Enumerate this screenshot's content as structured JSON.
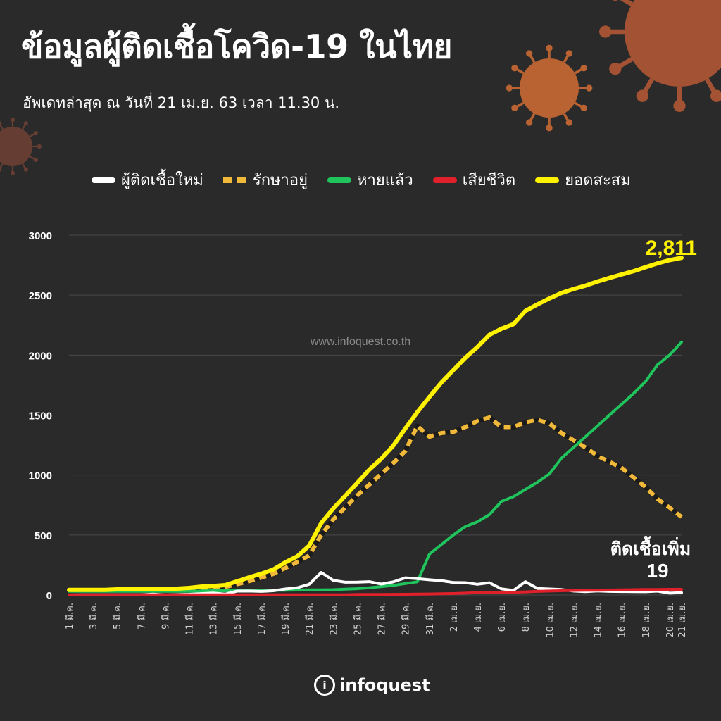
{
  "header": {
    "title": "ข้อมูลผู้ติดเชื้อโควิด-19 ในไทย",
    "subtitle": "อัพเดทล่าสุด ณ วันที่ 21 เม.ย. 63 เวลา 11.30 น."
  },
  "watermark": "www.infoquest.co.th",
  "logo": {
    "mark": "i",
    "text": "infoquest"
  },
  "colors": {
    "new_cases": "#ffffff",
    "active": "#f0b93a",
    "recovered": "#1fc45c",
    "deaths": "#e0202a",
    "cumulative": "#fff200",
    "background": "#2b2a2a"
  },
  "chart_data": {
    "type": "line",
    "title": "ข้อมูลผู้ติดเชื้อโควิด-19 ในไทย",
    "xlabel": "",
    "ylabel": "",
    "ylim": [
      0,
      3000
    ],
    "yticks": [
      0,
      500,
      1000,
      1500,
      2000,
      2500,
      3000
    ],
    "grid": true,
    "legend_position": "top",
    "x": [
      "1 มี.ค.",
      "2 มี.ค.",
      "3 มี.ค.",
      "4 มี.ค.",
      "5 มี.ค.",
      "6 มี.ค.",
      "7 มี.ค.",
      "8 มี.ค.",
      "9 มี.ค.",
      "10 มี.ค.",
      "11 มี.ค.",
      "12 มี.ค.",
      "13 มี.ค.",
      "14 มี.ค.",
      "15 มี.ค.",
      "16 มี.ค.",
      "17 มี.ค.",
      "18 มี.ค.",
      "19 มี.ค.",
      "20 มี.ค.",
      "21 มี.ค.",
      "22 มี.ค.",
      "23 มี.ค.",
      "24 มี.ค.",
      "25 มี.ค.",
      "26 มี.ค.",
      "27 มี.ค.",
      "28 มี.ค.",
      "29 มี.ค.",
      "30 มี.ค.",
      "31 มี.ค.",
      "1 เม.ย.",
      "2 เม.ย.",
      "3 เม.ย.",
      "4 เม.ย.",
      "5 เม.ย.",
      "6 เม.ย.",
      "7 เม.ย.",
      "8 เม.ย.",
      "9 เม.ย.",
      "10 เม.ย.",
      "11 เม.ย.",
      "12 เม.ย.",
      "13 เม.ย.",
      "14 เม.ย.",
      "15 เม.ย.",
      "16 เม.ย.",
      "17 เม.ย.",
      "18 เม.ย.",
      "19 เม.ย.",
      "20 เม.ย.",
      "21 เม.ย."
    ],
    "tick_labels": [
      "1 มี.ค.",
      "3 มี.ค.",
      "5 มี.ค.",
      "7 มี.ค.",
      "9 มี.ค.",
      "11 มี.ค.",
      "13 มี.ค.",
      "15 มี.ค.",
      "17 มี.ค.",
      "19 มี.ค.",
      "21 มี.ค.",
      "23 มี.ค.",
      "25 มี.ค.",
      "27 มี.ค.",
      "29 มี.ค.",
      "31 มี.ค.",
      "2 เม.ย.",
      "4 เม.ย.",
      "6 เม.ย.",
      "8 เม.ย.",
      "10 เม.ย.",
      "12 เม.ย.",
      "14 เม.ย.",
      "16 เม.ย.",
      "18 เม.ย.",
      "20 เม.ย.",
      "21 เม.ย."
    ],
    "series": [
      {
        "name": "ผู้ติดเชื้อใหม่",
        "color": "#ffffff",
        "style": "solid",
        "values": [
          0,
          1,
          1,
          1,
          1,
          1,
          2,
          7,
          0,
          3,
          6,
          11,
          16,
          7,
          32,
          33,
          30,
          35,
          50,
          60,
          89,
          188,
          122,
          106,
          107,
          111,
          91,
          109,
          143,
          136,
          127,
          120,
          104,
          103,
          89,
          102,
          51,
          38,
          111,
          54,
          50,
          45,
          33,
          28,
          34,
          30,
          29,
          28,
          27,
          32,
          15,
          19
        ]
      },
      {
        "name": "รักษาอยู่",
        "color": "#f0b93a",
        "style": "dashed",
        "values": [
          40,
          40,
          40,
          40,
          40,
          40,
          41,
          43,
          42,
          43,
          45,
          55,
          62,
          67,
          90,
          115,
          145,
          175,
          225,
          275,
          330,
          500,
          630,
          730,
          830,
          920,
          1010,
          1100,
          1200,
          1410,
          1320,
          1350,
          1360,
          1400,
          1450,
          1480,
          1400,
          1400,
          1440,
          1460,
          1430,
          1350,
          1290,
          1230,
          1160,
          1110,
          1060,
          980,
          900,
          800,
          730,
          650
        ]
      },
      {
        "name": "หายแล้ว",
        "color": "#1fc45c",
        "style": "solid",
        "values": [
          31,
          31,
          31,
          31,
          31,
          31,
          31,
          31,
          31,
          31,
          31,
          33,
          35,
          35,
          35,
          35,
          36,
          39,
          40,
          41,
          42,
          43,
          44,
          48,
          52,
          60,
          70,
          80,
          95,
          110,
          340,
          420,
          500,
          570,
          610,
          670,
          780,
          820,
          880,
          940,
          1010,
          1140,
          1230,
          1320,
          1410,
          1500,
          1590,
          1680,
          1780,
          1920,
          2000,
          2108
        ]
      },
      {
        "name": "เสียชีวิต",
        "color": "#e0202a",
        "style": "solid",
        "values": [
          1,
          1,
          1,
          1,
          1,
          1,
          1,
          1,
          1,
          1,
          1,
          1,
          1,
          1,
          1,
          1,
          1,
          1,
          1,
          1,
          1,
          1,
          2,
          2,
          4,
          4,
          4,
          5,
          6,
          7,
          8,
          10,
          12,
          15,
          19,
          20,
          20,
          23,
          26,
          30,
          33,
          35,
          38,
          40,
          40,
          41,
          42,
          44,
          46,
          46,
          47,
          47
        ]
      },
      {
        "name": "ยอดสะสม",
        "color": "#fff200",
        "style": "solid",
        "values": [
          42,
          43,
          43,
          43,
          47,
          48,
          50,
          50,
          50,
          53,
          59,
          70,
          75,
          82,
          114,
          147,
          177,
          212,
          272,
          322,
          411,
          599,
          721,
          827,
          934,
          1045,
          1136,
          1245,
          1388,
          1524,
          1651,
          1771,
          1875,
          1978,
          2067,
          2169,
          2220,
          2258,
          2369,
          2423,
          2473,
          2518,
          2551,
          2579,
          2613,
          2643,
          2672,
          2700,
          2733,
          2765,
          2792,
          2811
        ]
      }
    ],
    "annotations": [
      {
        "id": "cumulative-total",
        "text": "2,811",
        "color": "#fff200"
      },
      {
        "id": "new-today-label",
        "text": "ติดเชื้อเพิ่ม",
        "color": "#ffffff"
      },
      {
        "id": "new-today-value",
        "text": "19",
        "color": "#ffffff"
      }
    ]
  }
}
